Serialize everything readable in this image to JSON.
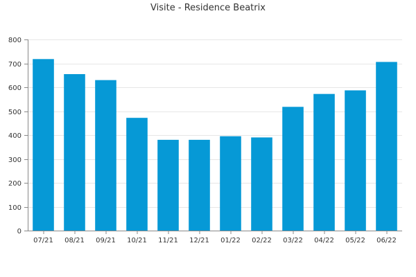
{
  "chart_data": {
    "type": "bar",
    "title": "Visite - Residence Beatrix",
    "xlabel": "",
    "ylabel": "",
    "categories": [
      "07/21",
      "08/21",
      "09/21",
      "10/21",
      "11/21",
      "12/21",
      "01/22",
      "02/22",
      "03/22",
      "04/22",
      "05/22",
      "06/22"
    ],
    "values": [
      718,
      655,
      630,
      472,
      380,
      380,
      395,
      390,
      518,
      572,
      587,
      706
    ],
    "ylim": [
      0,
      800
    ],
    "yticks": [
      0,
      100,
      200,
      300,
      400,
      500,
      600,
      700,
      800
    ],
    "grid": true,
    "legend": "none",
    "bar_color": "#0699d6"
  }
}
